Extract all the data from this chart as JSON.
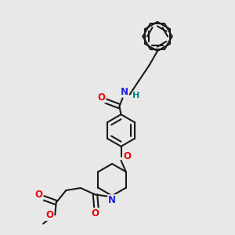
{
  "bg": "#e8e8e8",
  "bond_color": "#1a1a1a",
  "lw": 1.5,
  "atom_colors": {
    "O": "#ee0000",
    "N": "#2222dd",
    "H": "#008888"
  },
  "fs": 8.5,
  "xlim": [
    0,
    10
  ],
  "ylim": [
    0,
    10
  ]
}
